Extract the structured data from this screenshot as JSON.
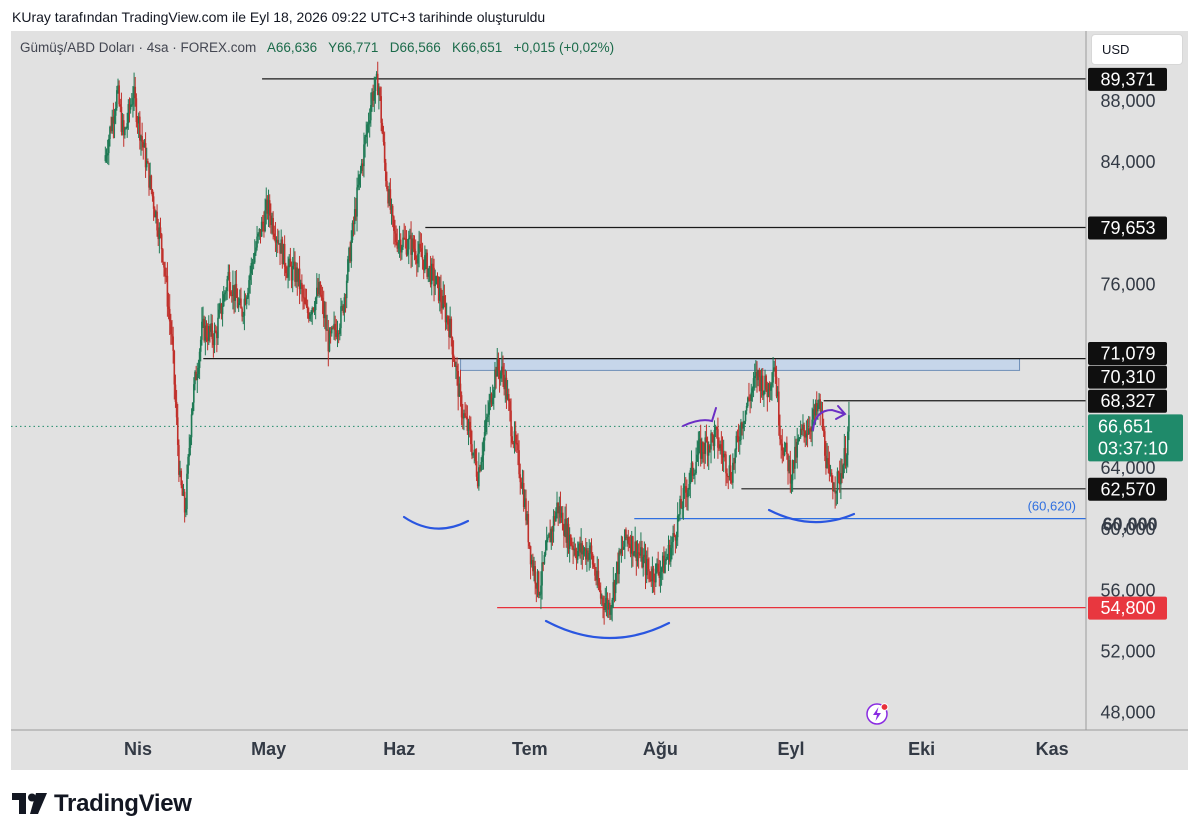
{
  "caption": "KUray tarafından TradingView.com ile Eyl 18, 2026 09:22 UTC+3 tarihinde oluşturuldu",
  "legend": {
    "symbol": "Gümüş/ABD Doları · 4sa · FOREX.com",
    "open": "A66,636",
    "high": "Y66,771",
    "low": "D66,566",
    "close": "K66,651",
    "change": "+0,015 (+0,02%)"
  },
  "currency_button": "USD",
  "brand": "TradingView",
  "colors": {
    "background": "#e1e1e1",
    "candle_up": "#1f7a55",
    "candle_down": "#c0302b",
    "support_line": "#e8303a",
    "neckline": "#2f6fe0",
    "zone": "#c6d6ea",
    "annotation_blue": "#2a56e0",
    "annotation_purple": "#6b2fc5",
    "last_price": "#1f8a6a"
  },
  "chart_data": {
    "type": "candlestick",
    "y_axis": {
      "ticks": [
        "88,000",
        "84,000",
        "76,000",
        "64,000",
        "60,000",
        "56,000",
        "52,000",
        "48,000"
      ],
      "tick_values": [
        88,
        84,
        76,
        64,
        60,
        56,
        52,
        48
      ],
      "range": [
        46.8,
        92.5
      ]
    },
    "x_axis": {
      "labels": [
        "Nis",
        "May",
        "Haz",
        "Tem",
        "Ağu",
        "Eyl",
        "Eki",
        "Kas"
      ],
      "positions": [
        0.25,
        1.25,
        2.25,
        3.25,
        4.25,
        5.25,
        6.25,
        7.25
      ]
    },
    "price_path": [
      [
        0.0,
        84.0
      ],
      [
        0.1,
        88.5
      ],
      [
        0.15,
        85.5
      ],
      [
        0.22,
        88.5
      ],
      [
        0.32,
        84.0
      ],
      [
        0.45,
        78.0
      ],
      [
        0.52,
        72.0
      ],
      [
        0.58,
        63.0
      ],
      [
        0.62,
        61.0
      ],
      [
        0.67,
        68.0
      ],
      [
        0.75,
        73.0
      ],
      [
        0.85,
        72.5
      ],
      [
        0.95,
        76.5
      ],
      [
        1.05,
        74.0
      ],
      [
        1.15,
        78.0
      ],
      [
        1.25,
        81.0
      ],
      [
        1.33,
        79.0
      ],
      [
        1.4,
        77.0
      ],
      [
        1.48,
        76.5
      ],
      [
        1.55,
        74.0
      ],
      [
        1.65,
        75.5
      ],
      [
        1.72,
        72.0
      ],
      [
        1.82,
        74.0
      ],
      [
        1.95,
        82.5
      ],
      [
        2.05,
        88.3
      ],
      [
        2.1,
        89.2
      ],
      [
        2.15,
        83.5
      ],
      [
        2.22,
        79.0
      ],
      [
        2.35,
        78.5
      ],
      [
        2.45,
        77.5
      ],
      [
        2.55,
        75.8
      ],
      [
        2.65,
        73.0
      ],
      [
        2.73,
        68.0
      ],
      [
        2.8,
        66.0
      ],
      [
        2.86,
        63.5
      ],
      [
        2.92,
        66.5
      ],
      [
        3.0,
        70.5
      ],
      [
        3.06,
        70.0
      ],
      [
        3.12,
        66.5
      ],
      [
        3.2,
        63.0
      ],
      [
        3.27,
        58.0
      ],
      [
        3.33,
        56.0
      ],
      [
        3.4,
        59.0
      ],
      [
        3.47,
        61.5
      ],
      [
        3.55,
        59.5
      ],
      [
        3.62,
        58.5
      ],
      [
        3.72,
        58.5
      ],
      [
        3.8,
        55.5
      ],
      [
        3.87,
        54.9
      ],
      [
        3.93,
        57.5
      ],
      [
        4.0,
        59.5
      ],
      [
        4.08,
        58.5
      ],
      [
        4.18,
        57.0
      ],
      [
        4.28,
        57.5
      ],
      [
        4.35,
        59.0
      ],
      [
        4.42,
        61.5
      ],
      [
        4.55,
        65.0
      ],
      [
        4.68,
        66.0
      ],
      [
        4.8,
        63.5
      ],
      [
        4.88,
        67.0
      ],
      [
        5.0,
        70.0
      ],
      [
        5.08,
        69.0
      ],
      [
        5.13,
        70.9
      ],
      [
        5.18,
        66.0
      ],
      [
        5.26,
        63.5
      ],
      [
        5.33,
        66.0
      ],
      [
        5.42,
        67.0
      ],
      [
        5.48,
        68.0
      ],
      [
        5.55,
        63.0
      ],
      [
        5.62,
        63.0
      ],
      [
        5.68,
        65.0
      ],
      [
        5.7,
        66.65
      ]
    ],
    "horizontal_lines": [
      {
        "price": 89.371,
        "label": "89,371",
        "x_start": 1.2
      },
      {
        "price": 79.653,
        "label": "79,653",
        "x_start": 2.45
      },
      {
        "price": 71.079,
        "label": "71,079",
        "x_start": 0.75
      },
      {
        "price": 68.327,
        "label": "68,327",
        "x_start": 5.5
      },
      {
        "price": 62.57,
        "label": "62,570",
        "x_start": 4.87
      },
      {
        "price": 60.62,
        "label": "(60,620)",
        "x_start": 4.05
      },
      {
        "price": 54.8,
        "label": "54,800",
        "x_start": 3.0
      }
    ],
    "zone": {
      "top": 71.079,
      "bottom": 70.31,
      "labels": [
        "71,079",
        "70,310"
      ],
      "x_start": 2.72,
      "x_end": 7.0
    },
    "last_price": {
      "value": "66,651",
      "countdown": "03:37:10",
      "price": 66.651
    }
  }
}
